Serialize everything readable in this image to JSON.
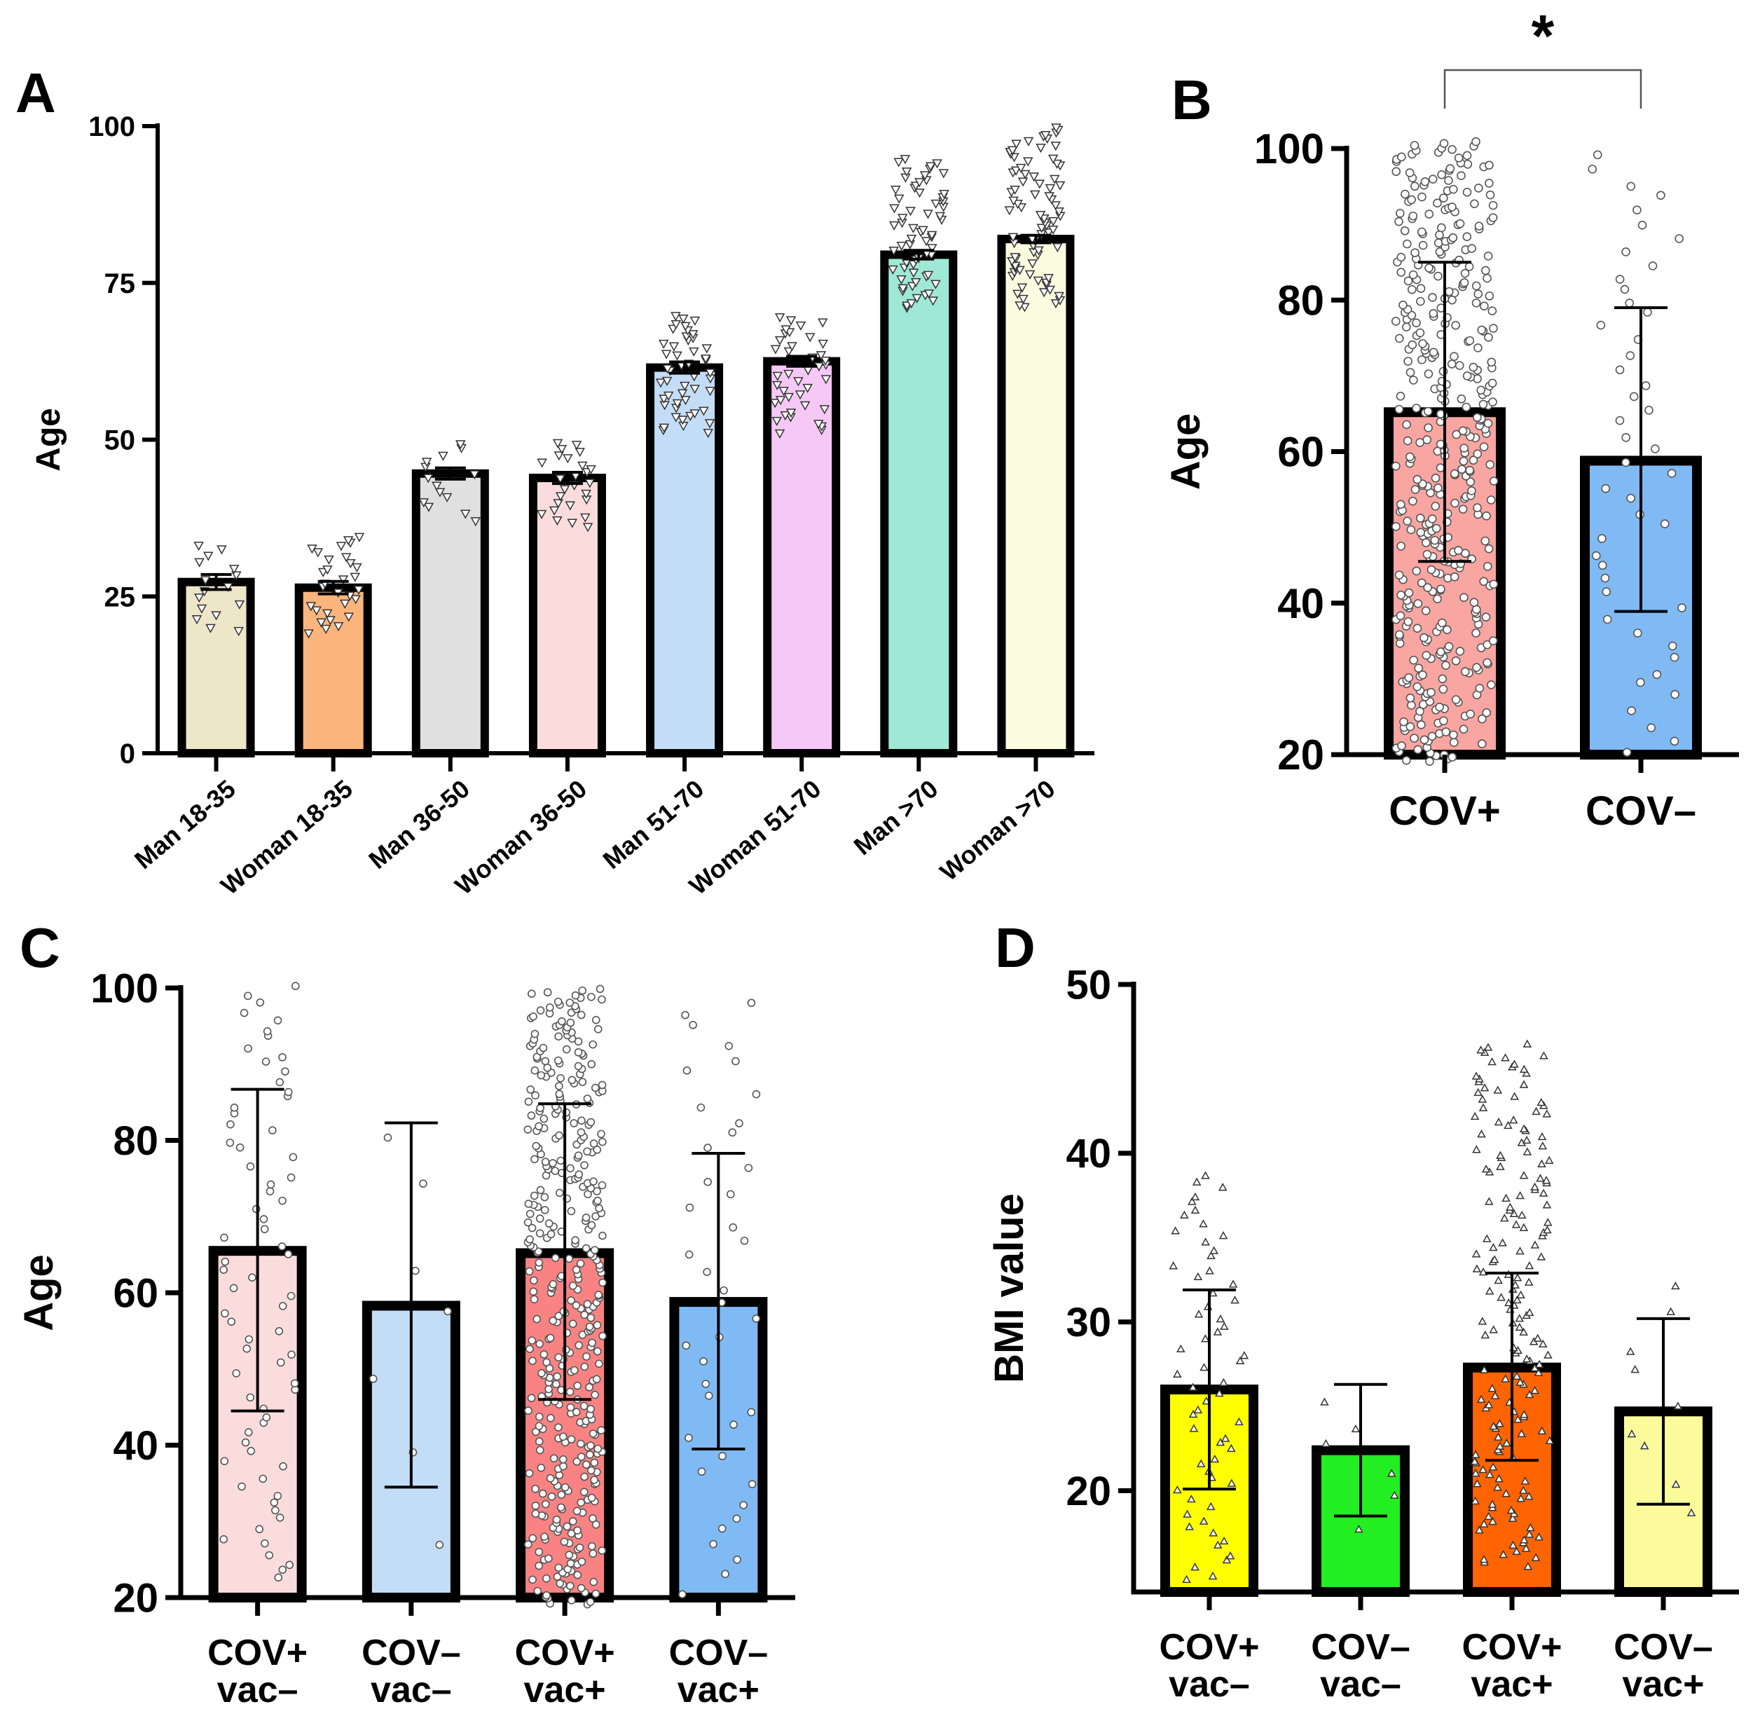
{
  "chart_data": [
    {
      "panel": "A",
      "type": "bar",
      "ylabel": "Age",
      "ylim": [
        0,
        100
      ],
      "yticks": [
        0,
        25,
        50,
        75,
        100
      ],
      "categories": [
        "Man 18-35",
        "Woman 18-35",
        "Man 36-50",
        "Woman 36-50",
        "Man 51-70",
        "Woman 51-70",
        "Man >70",
        "Woman >70"
      ],
      "values": [
        27.3,
        26.4,
        44.6,
        43.9,
        61.5,
        62.5,
        79.5,
        82.0
      ],
      "sem": [
        1.2,
        1.0,
        0.9,
        0.9,
        0.9,
        0.8,
        0.7,
        0.6
      ],
      "colors": [
        "#eee6c9",
        "#fbb57c",
        "#e0e0e0",
        "#fbdcdc",
        "#c3ddf7",
        "#f6c8f6",
        "#9ee8d5",
        "#fbfbe0"
      ],
      "point_ranges": [
        [
          19,
          34
        ],
        [
          19,
          35
        ],
        [
          37,
          50
        ],
        [
          36,
          50
        ],
        [
          51,
          70
        ],
        [
          51,
          70
        ],
        [
          71,
          95
        ],
        [
          71,
          100
        ]
      ],
      "point_counts": [
        16,
        30,
        14,
        26,
        48,
        40,
        64,
        82
      ],
      "marker": "triangle-down"
    },
    {
      "panel": "B",
      "type": "bar",
      "ylabel": "Age",
      "ylim": [
        20,
        100
      ],
      "yticks": [
        20,
        40,
        60,
        80,
        100
      ],
      "categories": [
        "COV+",
        "COV–"
      ],
      "values": [
        65.2,
        58.8
      ],
      "sd_low": [
        45.5,
        38.9
      ],
      "sd_high": [
        85.0,
        79.0
      ],
      "colors": [
        "#f9a5a2",
        "#7fbaf4"
      ],
      "point_ranges": [
        [
          19,
          101
        ],
        [
          20,
          100
        ]
      ],
      "point_counts": [
        420,
        46
      ],
      "marker": "circle",
      "significance": {
        "label": "*",
        "between": [
          "COV+",
          "COV–"
        ]
      }
    },
    {
      "panel": "C",
      "type": "bar",
      "ylabel": "Age",
      "ylim": [
        20,
        100
      ],
      "yticks": [
        20,
        40,
        60,
        80,
        100
      ],
      "categories": [
        "COV+\nvac–",
        "COV–\nvac–",
        "COV+\nvac+",
        "COV–\nvac+"
      ],
      "category_lines": [
        [
          "COV+",
          "vac–"
        ],
        [
          "COV–",
          "vac–"
        ],
        [
          "COV+",
          "vac+"
        ],
        [
          "COV–",
          "vac+"
        ]
      ],
      "values": [
        65.5,
        58.3,
        65.2,
        58.8
      ],
      "sd_low": [
        44.5,
        34.5,
        46.0,
        39.5
      ],
      "sd_high": [
        86.7,
        82.3,
        84.8,
        78.3
      ],
      "colors": [
        "#fbdcdc",
        "#c3ddf7",
        "#f98383",
        "#7fbaf4"
      ],
      "point_ranges": [
        [
          22,
          101
        ],
        [
          26,
          89
        ],
        [
          19,
          100
        ],
        [
          20,
          100
        ]
      ],
      "point_counts": [
        70,
        7,
        400,
        40
      ],
      "marker": "circle"
    },
    {
      "panel": "D",
      "type": "bar",
      "ylabel": "BMI value",
      "ylim": [
        14,
        50
      ],
      "yticks": [
        20,
        30,
        40,
        50
      ],
      "categories": [
        "COV+\nvac–",
        "COV–\nvac–",
        "COV+\nvac+",
        "COV–\nvac+"
      ],
      "category_lines": [
        [
          "COV+",
          "vac–"
        ],
        [
          "COV–",
          "vac–"
        ],
        [
          "COV+",
          "vac+"
        ],
        [
          "COV–",
          "vac+"
        ]
      ],
      "values": [
        26.0,
        22.4,
        27.3,
        24.7
      ],
      "sd_low": [
        20.1,
        18.5,
        21.8,
        19.2
      ],
      "sd_high": [
        31.9,
        26.3,
        32.9,
        30.2
      ],
      "colors": [
        "#ffff00",
        "#22ee22",
        "#ff6400",
        "#fbfb9b"
      ],
      "point_ranges": [
        [
          14.5,
          39
        ],
        [
          17.5,
          26.5
        ],
        [
          15.5,
          46.6
        ],
        [
          18.5,
          33
        ]
      ],
      "point_counts": [
        60,
        6,
        180,
        9
      ],
      "marker": "triangle-up"
    }
  ],
  "panel_labels": [
    "A",
    "B",
    "C",
    "D"
  ]
}
